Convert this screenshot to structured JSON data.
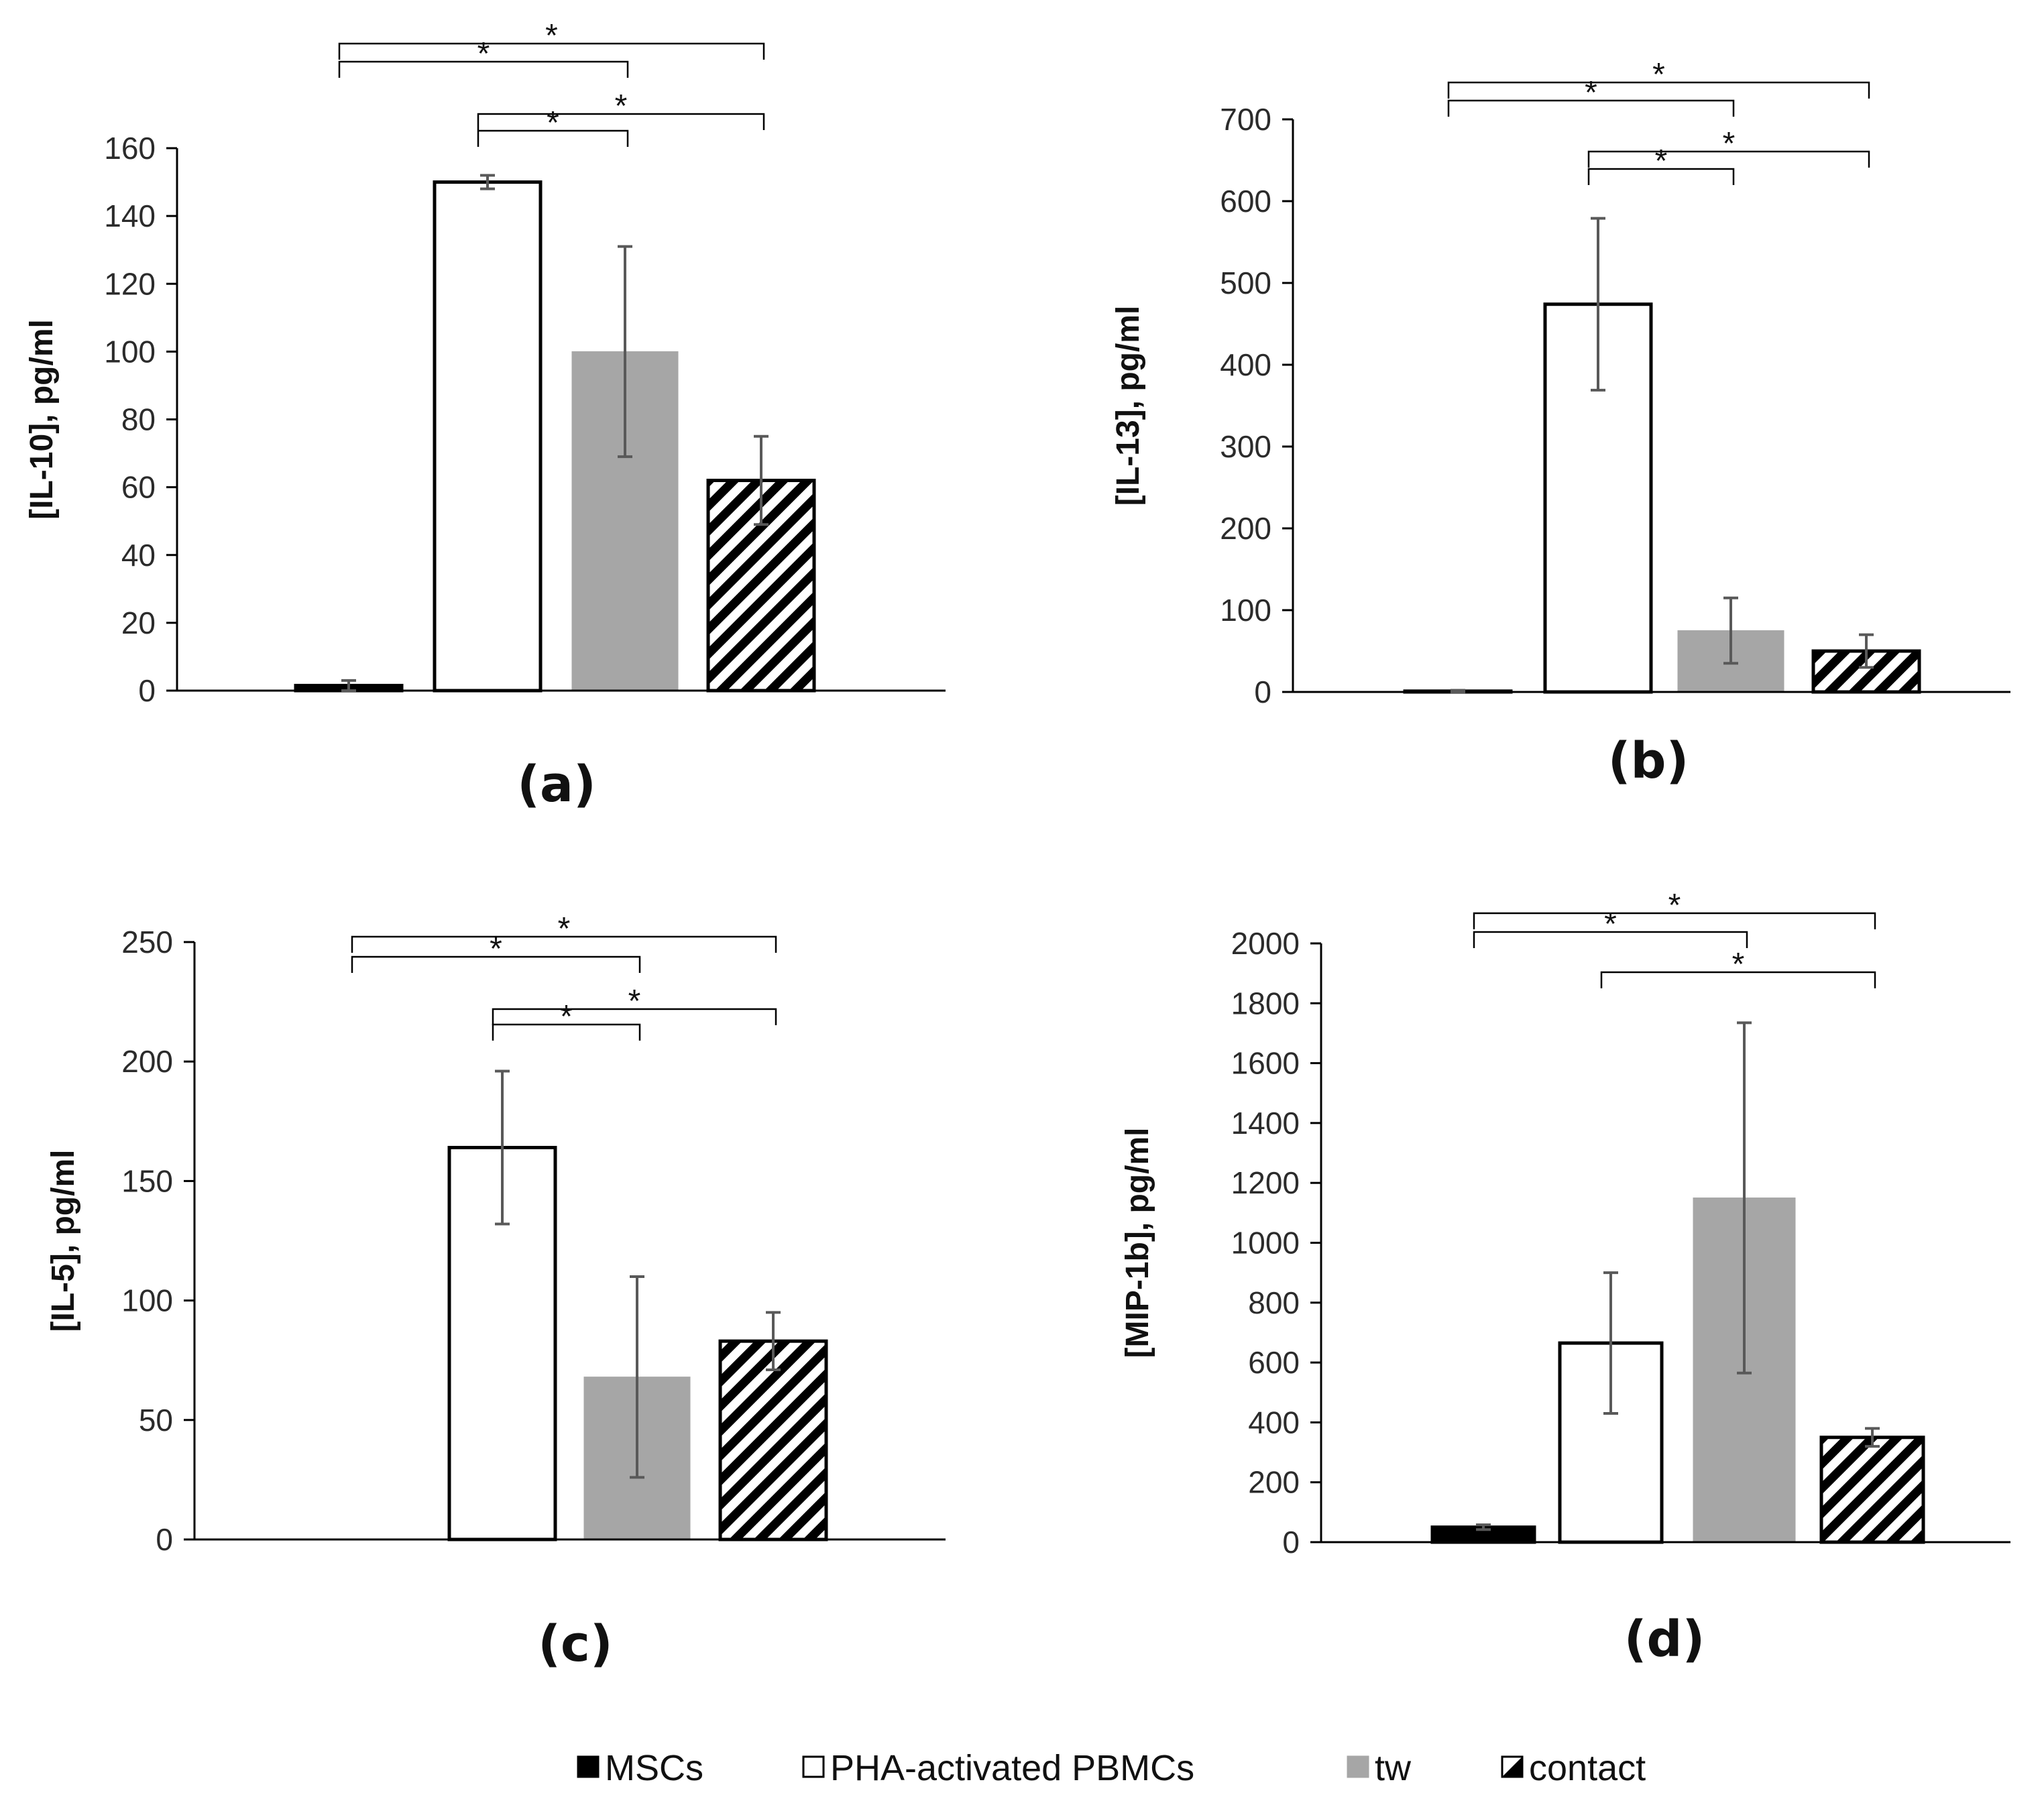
{
  "legend": [
    {
      "key": "msc",
      "label": "MSCs"
    },
    {
      "key": "pha",
      "label": "PHA-activated PBMCs"
    },
    {
      "key": "tw",
      "label": "tw"
    },
    {
      "key": "contact",
      "label": "contact"
    }
  ],
  "colors": {
    "msc": "#000000",
    "pha": "#ffffff",
    "tw": "#a6a6a6",
    "contact": "hatch",
    "axis": "#000000",
    "error": "#595959"
  },
  "sig_symbol": "*",
  "chart_data": [
    {
      "type": "bar",
      "panel": "(a)",
      "ylabel": "[IL-10], pg/ml",
      "categories": [
        "MSCs",
        "PHA-activated PBMCs",
        "tw",
        "contact"
      ],
      "values": [
        1.5,
        150,
        100,
        62
      ],
      "errors": [
        [
          1.5,
          1.5
        ],
        [
          2,
          2
        ],
        [
          31,
          31
        ],
        [
          13,
          13
        ]
      ],
      "ylim": [
        0,
        160
      ],
      "ytick_step": 20,
      "yticks": [
        "0",
        "20",
        "40",
        "60",
        "80",
        "100",
        "120",
        "140",
        "160"
      ],
      "significance": [
        {
          "from": 0,
          "to": 3,
          "label": "*"
        },
        {
          "from": 0,
          "to": 2,
          "label": "*"
        },
        {
          "from": 1,
          "to": 3,
          "label": "*"
        },
        {
          "from": 1,
          "to": 2,
          "label": "*"
        }
      ]
    },
    {
      "type": "bar",
      "panel": "(b)",
      "ylabel": "[IL-13], pg/ml",
      "categories": [
        "MSCs",
        "PHA-activated PBMCs",
        "tw",
        "contact"
      ],
      "values": [
        1,
        474,
        75,
        50
      ],
      "errors": [
        [
          1,
          1
        ],
        [
          105,
          105
        ],
        [
          40,
          40
        ],
        [
          20,
          20
        ]
      ],
      "ylim": [
        0,
        700
      ],
      "ytick_step": 100,
      "yticks": [
        "0",
        "100",
        "200",
        "300",
        "400",
        "500",
        "600",
        "700"
      ],
      "significance": [
        {
          "from": 0,
          "to": 3,
          "label": "*"
        },
        {
          "from": 0,
          "to": 2,
          "label": "*"
        },
        {
          "from": 1,
          "to": 3,
          "label": "*"
        },
        {
          "from": 1,
          "to": 2,
          "label": "*"
        }
      ]
    },
    {
      "type": "bar",
      "panel": "(c)",
      "ylabel": "[IL-5], pg/ml",
      "categories": [
        "MSCs",
        "PHA-activated PBMCs",
        "tw",
        "contact"
      ],
      "values": [
        0,
        164,
        68,
        83
      ],
      "errors": [
        [
          0,
          0
        ],
        [
          32,
          32
        ],
        [
          42,
          42
        ],
        [
          12,
          12
        ]
      ],
      "ylim": [
        0,
        250
      ],
      "ytick_step": 50,
      "yticks": [
        "0",
        "50",
        "100",
        "150",
        "200",
        "250"
      ],
      "significance": [
        {
          "from": 0,
          "to": 3,
          "label": "*"
        },
        {
          "from": 0,
          "to": 2,
          "label": "*"
        },
        {
          "from": 1,
          "to": 3,
          "label": "*"
        },
        {
          "from": 1,
          "to": 2,
          "label": "*"
        }
      ]
    },
    {
      "type": "bar",
      "panel": "(d)",
      "ylabel": "[MIP-1b], pg/ml",
      "categories": [
        "MSCs",
        "PHA-activated PBMCs",
        "tw",
        "contact"
      ],
      "values": [
        50,
        665,
        1150,
        350
      ],
      "errors": [
        [
          8,
          8
        ],
        [
          235,
          235
        ],
        [
          585,
          585
        ],
        [
          30,
          30
        ]
      ],
      "ylim": [
        0,
        2000
      ],
      "ytick_step": 200,
      "yticks": [
        "0",
        "200",
        "400",
        "600",
        "800",
        "1000",
        "1200",
        "1400",
        "1600",
        "1800",
        "2000"
      ],
      "significance": [
        {
          "from": 0,
          "to": 3,
          "label": "*"
        },
        {
          "from": 0,
          "to": 2,
          "label": "*"
        },
        {
          "from": 1,
          "to": 3,
          "label": "*"
        }
      ]
    }
  ]
}
